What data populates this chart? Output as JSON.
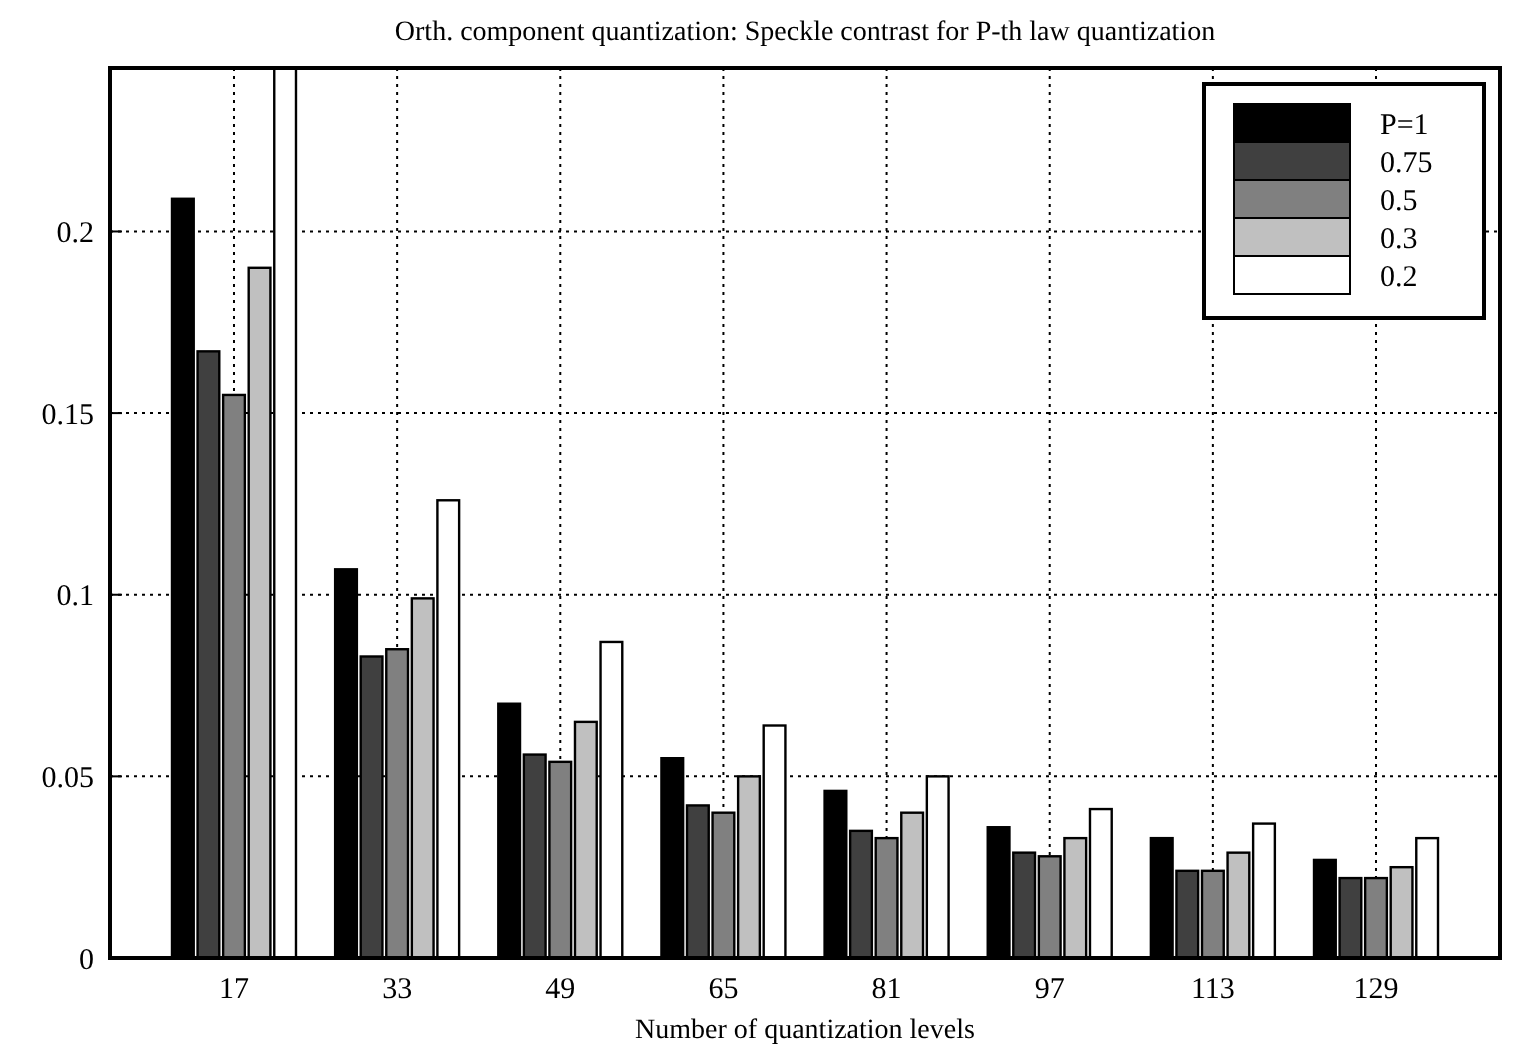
{
  "chart_data": {
    "type": "bar",
    "title": "Orth. component quantization: Speckle contrast for P-th law quantization",
    "xlabel": "Number of quantization levels",
    "categories": [
      "17",
      "33",
      "49",
      "65",
      "81",
      "97",
      "113",
      "129"
    ],
    "series": [
      {
        "name": "P=1",
        "color": "#000000",
        "values": [
          0.209,
          0.107,
          0.07,
          0.055,
          0.046,
          0.036,
          0.033,
          0.027
        ]
      },
      {
        "name": "0.75",
        "color": "#404040",
        "values": [
          0.167,
          0.083,
          0.056,
          0.042,
          0.035,
          0.029,
          0.024,
          0.022
        ]
      },
      {
        "name": "0.5",
        "color": "#808080",
        "values": [
          0.155,
          0.085,
          0.054,
          0.04,
          0.033,
          0.028,
          0.024,
          0.022
        ]
      },
      {
        "name": "0.3",
        "color": "#c0c0c0",
        "values": [
          0.19,
          0.099,
          0.065,
          0.05,
          0.04,
          0.033,
          0.029,
          0.025
        ]
      },
      {
        "name": "0.2",
        "color": "#ffffff",
        "values": [
          0.245,
          0.126,
          0.087,
          0.064,
          0.05,
          0.041,
          0.037,
          0.033
        ]
      }
    ],
    "ylim": [
      0,
      0.245
    ],
    "yticks": [
      0,
      0.05,
      0.1,
      0.15,
      0.2
    ],
    "grid": true,
    "legend": "top right"
  }
}
